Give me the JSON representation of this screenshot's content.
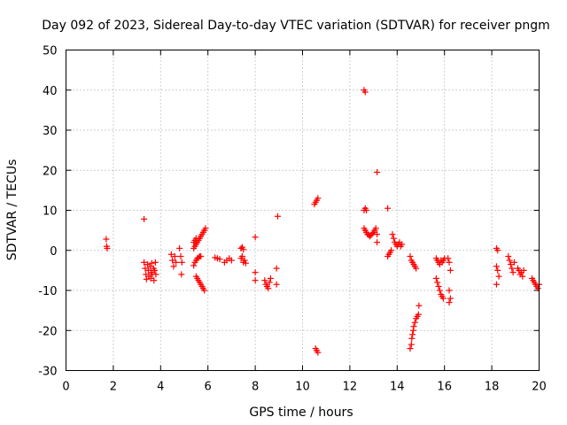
{
  "chart_data": {
    "type": "scatter",
    "title": "Day 092 of 2023, Sidereal Day-to-day VTEC variation (SDTVAR) for receiver pngm",
    "xlabel": "GPS time / hours",
    "ylabel": "SDTVAR / TECUs",
    "xlim": [
      0,
      20
    ],
    "ylim": [
      -30,
      50
    ],
    "xticks": [
      "0",
      "2",
      "4",
      "6",
      "8",
      "10",
      "12",
      "14",
      "16",
      "18",
      "20"
    ],
    "yticks": [
      "-30",
      "-20",
      "-10",
      "0",
      "10",
      "20",
      "30",
      "40",
      "50"
    ],
    "grid": true,
    "marker": "plus",
    "color": "#ff0000",
    "series": [
      {
        "name": "pngm",
        "points": [
          [
            1.7,
            2.8
          ],
          [
            1.72,
            1.0
          ],
          [
            1.74,
            0.5
          ],
          [
            3.3,
            7.8
          ],
          [
            3.3,
            -3.0
          ],
          [
            3.35,
            -4.5
          ],
          [
            3.38,
            -6.0
          ],
          [
            3.4,
            -7.2
          ],
          [
            3.45,
            -3.5
          ],
          [
            3.48,
            -5.0
          ],
          [
            3.5,
            -6.5
          ],
          [
            3.55,
            -4.0
          ],
          [
            3.58,
            -7.0
          ],
          [
            3.6,
            -5.5
          ],
          [
            3.62,
            -3.2
          ],
          [
            3.65,
            -6.0
          ],
          [
            3.7,
            -4.5
          ],
          [
            3.72,
            -7.5
          ],
          [
            3.75,
            -5.0
          ],
          [
            3.78,
            -3.0
          ],
          [
            3.8,
            -6.0
          ],
          [
            4.45,
            -1.0
          ],
          [
            4.5,
            -2.5
          ],
          [
            4.55,
            -4.0
          ],
          [
            4.6,
            -1.5
          ],
          [
            4.65,
            -3.0
          ],
          [
            4.8,
            0.5
          ],
          [
            4.85,
            -1.5
          ],
          [
            4.9,
            -3.0
          ],
          [
            4.88,
            -6.0
          ],
          [
            5.4,
            -3.8
          ],
          [
            5.45,
            -3.0
          ],
          [
            5.5,
            -2.5
          ],
          [
            5.55,
            -2.0
          ],
          [
            5.6,
            -1.8
          ],
          [
            5.65,
            -1.5
          ],
          [
            5.7,
            -1.5
          ],
          [
            5.4,
            0.5
          ],
          [
            5.45,
            1.0
          ],
          [
            5.5,
            1.5
          ],
          [
            5.55,
            2.0
          ],
          [
            5.6,
            2.5
          ],
          [
            5.65,
            3.0
          ],
          [
            5.7,
            3.5
          ],
          [
            5.75,
            4.0
          ],
          [
            5.8,
            4.5
          ],
          [
            5.85,
            5.0
          ],
          [
            5.9,
            5.5
          ],
          [
            5.4,
            2.0
          ],
          [
            5.45,
            2.5
          ],
          [
            5.5,
            3.0
          ],
          [
            5.5,
            -6.5
          ],
          [
            5.55,
            -7.0
          ],
          [
            5.6,
            -7.5
          ],
          [
            5.65,
            -8.0
          ],
          [
            5.7,
            -8.5
          ],
          [
            5.75,
            -9.0
          ],
          [
            5.8,
            -9.5
          ],
          [
            5.85,
            -10.0
          ],
          [
            6.3,
            -1.8
          ],
          [
            6.4,
            -2.0
          ],
          [
            6.5,
            -2.2
          ],
          [
            6.7,
            -3.0
          ],
          [
            6.8,
            -2.5
          ],
          [
            6.9,
            -2.0
          ],
          [
            7.0,
            -2.5
          ],
          [
            7.4,
            0.5
          ],
          [
            7.45,
            0.8
          ],
          [
            7.5,
            0.2
          ],
          [
            7.4,
            -2.0
          ],
          [
            7.5,
            -3.0
          ],
          [
            7.55,
            -2.5
          ],
          [
            7.6,
            -3.2
          ],
          [
            7.45,
            -1.5
          ],
          [
            8.0,
            3.3
          ],
          [
            8.0,
            -5.5
          ],
          [
            8.0,
            -7.5
          ],
          [
            8.4,
            -7.5
          ],
          [
            8.45,
            -8.5
          ],
          [
            8.5,
            -9.0
          ],
          [
            8.55,
            -9.5
          ],
          [
            8.6,
            -8.0
          ],
          [
            8.65,
            -7.0
          ],
          [
            8.9,
            -4.5
          ],
          [
            8.9,
            -8.5
          ],
          [
            8.95,
            8.5
          ],
          [
            10.5,
            11.5
          ],
          [
            10.55,
            12.0
          ],
          [
            10.6,
            12.5
          ],
          [
            10.65,
            13.0
          ],
          [
            10.55,
            -24.5
          ],
          [
            10.6,
            -25.0
          ],
          [
            10.65,
            -25.5
          ],
          [
            12.6,
            40.0
          ],
          [
            12.65,
            39.5
          ],
          [
            12.6,
            10.0
          ],
          [
            12.65,
            10.5
          ],
          [
            12.7,
            10.0
          ],
          [
            12.6,
            5.5
          ],
          [
            12.65,
            5.0
          ],
          [
            12.7,
            4.5
          ],
          [
            12.75,
            4.0
          ],
          [
            12.8,
            3.8
          ],
          [
            12.85,
            3.5
          ],
          [
            12.9,
            3.8
          ],
          [
            12.95,
            4.2
          ],
          [
            13.0,
            4.5
          ],
          [
            13.05,
            5.0
          ],
          [
            13.1,
            5.5
          ],
          [
            13.15,
            4.0
          ],
          [
            13.15,
            19.5
          ],
          [
            13.15,
            2.0
          ],
          [
            13.6,
            10.5
          ],
          [
            13.6,
            -1.5
          ],
          [
            13.65,
            -1.0
          ],
          [
            13.7,
            -0.5
          ],
          [
            13.75,
            0.0
          ],
          [
            13.8,
            4.0
          ],
          [
            13.85,
            3.0
          ],
          [
            13.9,
            2.0
          ],
          [
            13.95,
            1.5
          ],
          [
            14.0,
            1.0
          ],
          [
            14.05,
            1.5
          ],
          [
            14.1,
            2.0
          ],
          [
            14.15,
            1.0
          ],
          [
            14.2,
            1.5
          ],
          [
            14.55,
            -1.5
          ],
          [
            14.6,
            -2.5
          ],
          [
            14.65,
            -3.0
          ],
          [
            14.7,
            -3.5
          ],
          [
            14.75,
            -4.0
          ],
          [
            14.8,
            -4.5
          ],
          [
            14.55,
            -24.5
          ],
          [
            14.6,
            -23.5
          ],
          [
            14.62,
            -22.0
          ],
          [
            14.65,
            -21.0
          ],
          [
            14.68,
            -20.0
          ],
          [
            14.7,
            -19.0
          ],
          [
            14.75,
            -18.0
          ],
          [
            14.8,
            -17.0
          ],
          [
            14.85,
            -16.5
          ],
          [
            14.9,
            -16.0
          ],
          [
            14.92,
            -13.8
          ],
          [
            15.65,
            -2.0
          ],
          [
            15.7,
            -2.5
          ],
          [
            15.75,
            -3.0
          ],
          [
            15.8,
            -3.5
          ],
          [
            15.85,
            -2.5
          ],
          [
            15.9,
            -3.0
          ],
          [
            15.95,
            -2.5
          ],
          [
            16.0,
            -2.0
          ],
          [
            15.65,
            -7.0
          ],
          [
            15.7,
            -8.0
          ],
          [
            15.75,
            -9.0
          ],
          [
            15.8,
            -10.0
          ],
          [
            15.85,
            -11.0
          ],
          [
            15.9,
            -11.5
          ],
          [
            15.95,
            -12.0
          ],
          [
            16.15,
            -2.0
          ],
          [
            16.2,
            -3.0
          ],
          [
            16.25,
            -5.0
          ],
          [
            16.2,
            -10.0
          ],
          [
            16.25,
            -12.0
          ],
          [
            16.2,
            -13.0
          ],
          [
            18.2,
            0.5
          ],
          [
            18.25,
            0.0
          ],
          [
            18.2,
            -4.0
          ],
          [
            18.25,
            -5.0
          ],
          [
            18.3,
            -6.5
          ],
          [
            18.2,
            -8.5
          ],
          [
            18.7,
            -1.5
          ],
          [
            18.75,
            -2.5
          ],
          [
            18.8,
            -3.5
          ],
          [
            18.85,
            -4.5
          ],
          [
            18.9,
            -5.5
          ],
          [
            18.95,
            -3.0
          ],
          [
            19.1,
            -4.5
          ],
          [
            19.15,
            -5.0
          ],
          [
            19.2,
            -6.0
          ],
          [
            19.25,
            -5.5
          ],
          [
            19.3,
            -6.5
          ],
          [
            19.35,
            -5.0
          ],
          [
            19.7,
            -7.0
          ],
          [
            19.75,
            -7.5
          ],
          [
            19.8,
            -8.0
          ],
          [
            19.85,
            -8.5
          ],
          [
            19.9,
            -9.0
          ],
          [
            19.95,
            -9.5
          ],
          [
            20.0,
            -8.5
          ]
        ]
      }
    ]
  }
}
